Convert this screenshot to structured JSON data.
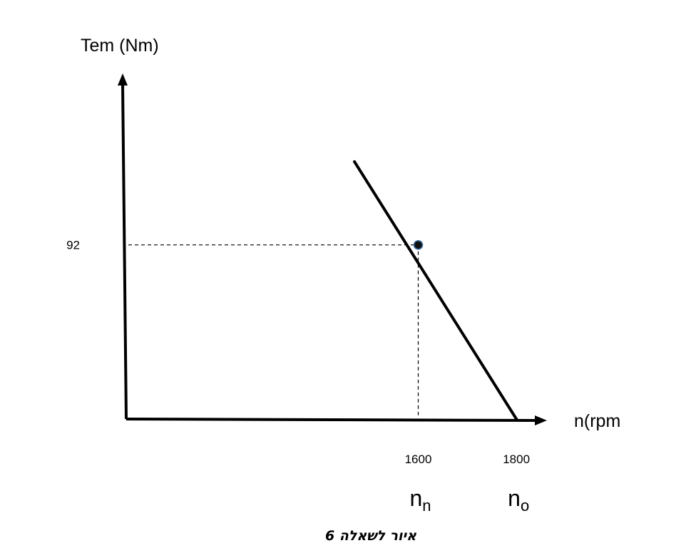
{
  "chart_data": {
    "type": "line",
    "ylabel": "Tem (Nm)",
    "xlabel": "n(rpm",
    "series": [
      {
        "x": [
          1470,
          1800
        ],
        "y": [
          136,
          0
        ]
      }
    ],
    "marker": {
      "x": 1600,
      "y": 92
    },
    "x_ticks": [
      {
        "value": 1600,
        "label": "1600",
        "symbol": "n",
        "subscript": "n"
      },
      {
        "value": 1800,
        "label": "1800",
        "symbol": "n",
        "subscript": "o"
      }
    ],
    "y_ticks": [
      {
        "value": 92,
        "label": "92"
      }
    ],
    "xlim": [
      1005,
      1855
    ],
    "ylim": [
      0,
      180
    ],
    "grid": false,
    "legend": false
  },
  "caption": "איור לשאלה 6",
  "colors": {
    "line": "#000000",
    "marker_fill": "#111111",
    "marker_stroke": "#3a6ea5"
  }
}
